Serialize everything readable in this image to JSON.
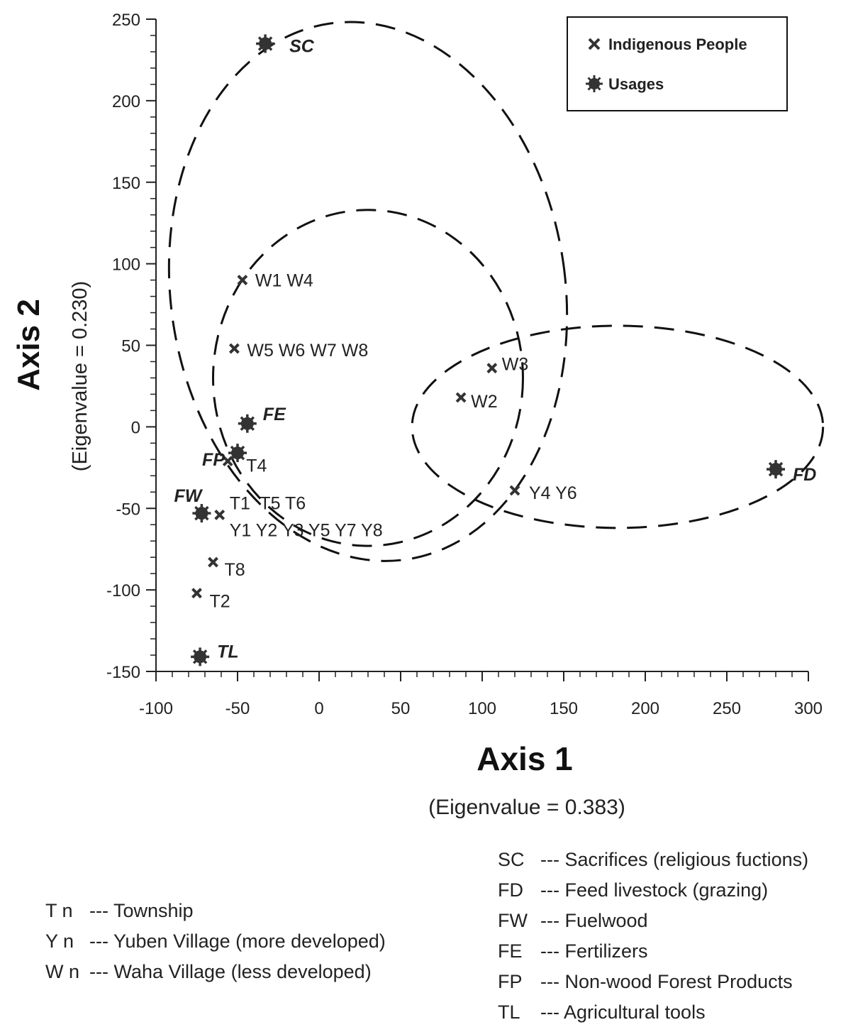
{
  "chart_data": {
    "type": "scatter",
    "xlabel": "Axis 1",
    "xlabel_sub": "(Eigenvalue = 0.383)",
    "ylabel": "Axis 2",
    "ylabel_sub": "(Eigenvalue = 0.230)",
    "xlim": [
      -100,
      300
    ],
    "ylim": [
      -150,
      250
    ],
    "x_ticks": [
      -100,
      -50,
      0,
      50,
      100,
      150,
      200,
      250,
      300
    ],
    "y_ticks": [
      -150,
      -100,
      -50,
      0,
      50,
      100,
      150,
      200,
      250
    ],
    "grid": false,
    "legend_position": "top-right",
    "series": [
      {
        "name": "Indigenous People",
        "marker": "x",
        "points": [
          {
            "label": "W1 W4",
            "x": -47,
            "y": 90
          },
          {
            "label": "W5 W6 W7 W8",
            "x": -52,
            "y": 48
          },
          {
            "label": "W3",
            "x": 106,
            "y": 36
          },
          {
            "label": "W2",
            "x": 87,
            "y": 18
          },
          {
            "label": "T4",
            "x": -56,
            "y": -21
          },
          {
            "label": "T1  T5 T6",
            "x": -61,
            "y": -54
          },
          {
            "label": "Y4 Y6",
            "x": 120,
            "y": -39
          },
          {
            "label": "T8",
            "x": -65,
            "y": -83
          },
          {
            "label": "T2",
            "x": -75,
            "y": -102
          }
        ]
      },
      {
        "name": "Usages",
        "marker": "star",
        "points": [
          {
            "label": "SC",
            "x": -33,
            "y": 235
          },
          {
            "label": "FE",
            "x": -44,
            "y": 2
          },
          {
            "label": "FP",
            "x": -50,
            "y": -16
          },
          {
            "label": "FW",
            "x": -72,
            "y": -53
          },
          {
            "label": "TL",
            "x": -73,
            "y": -141
          },
          {
            "label": "FD",
            "x": 280,
            "y": -26
          }
        ]
      }
    ],
    "extra_point_label": "Y1 Y2 Y3 Y5 Y7 Y8",
    "ellipses": [
      {
        "cx": 30,
        "cy": 83,
        "rx": 121,
        "ry": 166,
        "rotate": -8
      },
      {
        "cx": 30,
        "cy": 30,
        "rx": 95,
        "ry": 103,
        "rotate": 0
      },
      {
        "cx": 183,
        "cy": 0,
        "rx": 126,
        "ry": 62,
        "rotate": 0
      }
    ]
  },
  "legend": [
    {
      "label": "Indigenous People",
      "marker": "x-icon"
    },
    {
      "label": "Usages",
      "marker": "star-icon"
    }
  ],
  "notes_left": [
    {
      "code": "T n",
      "text": "--- Township"
    },
    {
      "code": "Y n",
      "text": "--- Yuben Village (more developed)"
    },
    {
      "code": "W n",
      "text": "--- Waha Village (less developed)"
    }
  ],
  "notes_right": [
    {
      "code": "SC",
      "text": "--- Sacrifices (religious fuctions)"
    },
    {
      "code": "FD",
      "text": "--- Feed livestock (grazing)"
    },
    {
      "code": "FW",
      "text": "--- Fuelwood"
    },
    {
      "code": "FE",
      "text": "--- Fertilizers"
    },
    {
      "code": "FP",
      "text": "--- Non-wood Forest Products"
    },
    {
      "code": "TL",
      "text": "--- Agricultural tools"
    }
  ]
}
